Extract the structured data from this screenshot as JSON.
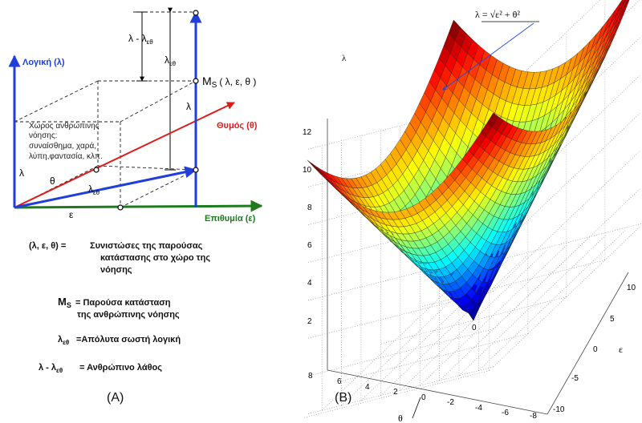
{
  "panel_a": {
    "axis_logic": "Λογική (λ)",
    "axis_emotion": "Θυμός (θ)",
    "axis_desire": "Επιθυμία (ε)",
    "space_text": [
      "Χώρος ανθρώπινης",
      "νόησης:",
      "συναίσθημα, χαρά,",
      "λύπη,φαντασία, κλπ."
    ],
    "ms_label": "M",
    "ms_sub": "S",
    "ms_args": "( λ, ε, θ )",
    "lbl_lambda_minus": "λ - λ",
    "lbl_lambda_et": "λ",
    "lbl_lambda": "λ",
    "lbl_theta": "θ",
    "lbl_epsilon": "ε",
    "sub_et": "εθ",
    "legend": {
      "components_key": "(λ, ε, θ) =",
      "components_lines": [
        "Συνιστώσες της παρούσας",
        "κατάστασης στο χώρο της",
        "νόησης"
      ],
      "ms_key": "M",
      "ms_sub": "S",
      "ms_lines": [
        "= Παρούσα κατάσταση",
        "της ανθρώπινης νόησης"
      ],
      "let_key": "λ",
      "let_sub": "εθ",
      "let_text": "=Απόλυτα σωστή λογική",
      "err_key": "λ - λ",
      "err_sub": "εθ",
      "err_text": "= Ανθρώπινο λάθος"
    },
    "caption": "(A)"
  },
  "panel_b": {
    "formula": "λ = √ε² + θ²",
    "lambda_axis": "λ",
    "eps_axis": "ε",
    "theta_axis": "θ",
    "caption": "(B)",
    "z_ticks": [
      "0",
      "2",
      "4",
      "6",
      "8",
      "10",
      "12"
    ],
    "eps_ticks": [
      "-10",
      "-5",
      "0",
      "5",
      "10"
    ],
    "theta_ticks": [
      "8",
      "6",
      "4",
      "2",
      "0",
      "-2",
      "-4",
      "-6",
      "-8"
    ],
    "origin_tick": "0"
  },
  "colors": {
    "blue": "#1f3fd8",
    "red": "#dd1c1c",
    "green": "#1d7a1d"
  },
  "surface_function": "sqrt(eps^2 + theta^2)"
}
